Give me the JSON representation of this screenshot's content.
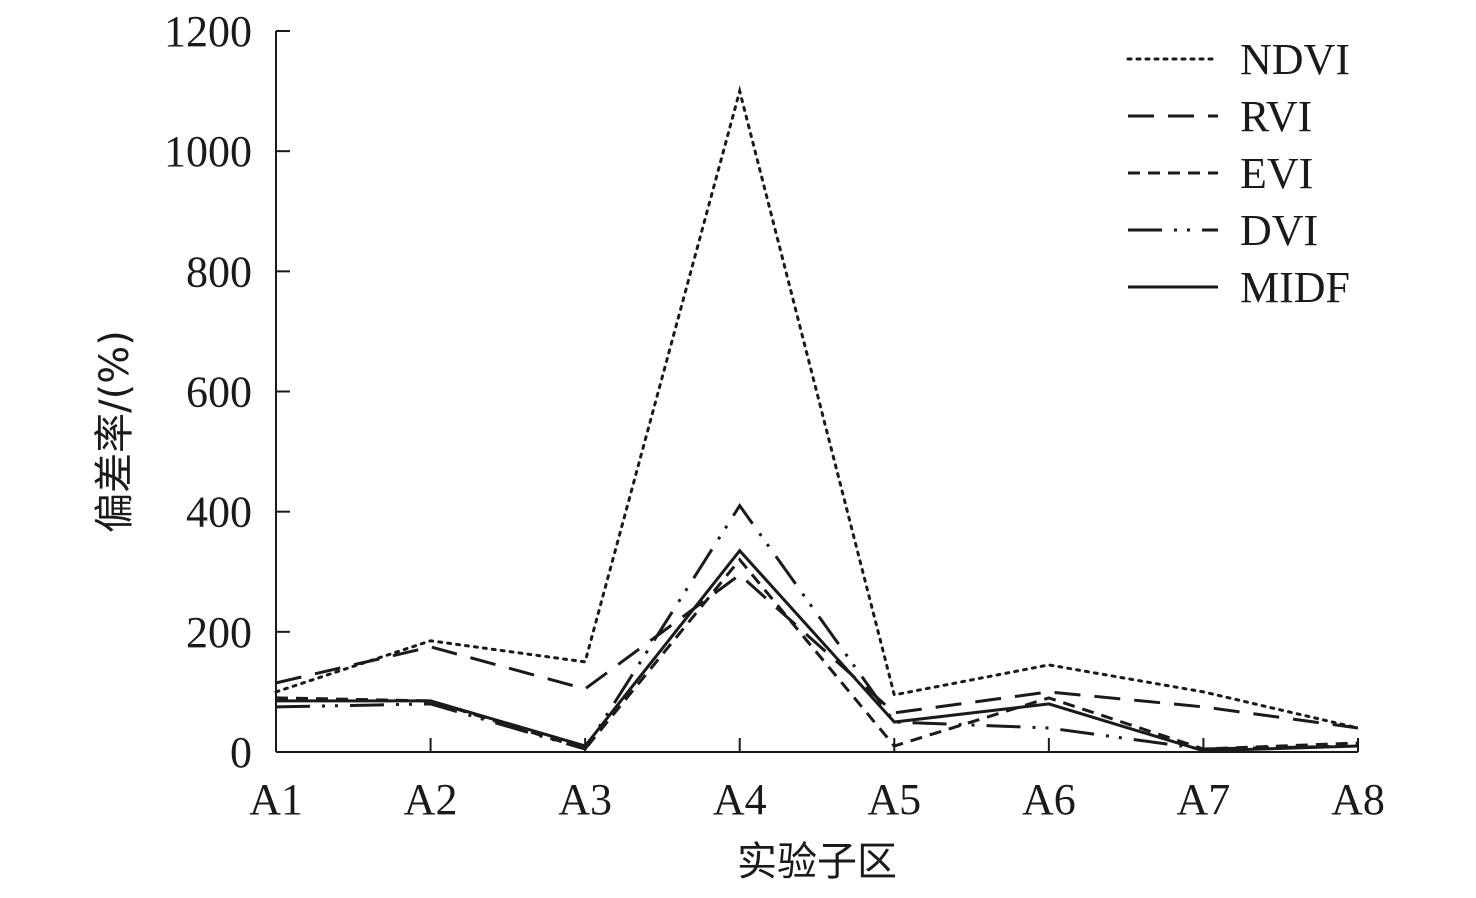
{
  "chart_data": {
    "type": "line",
    "xlabel": "实验子区",
    "ylabel": "偏差率/(%)",
    "categories": [
      "A1",
      "A2",
      "A3",
      "A4",
      "A5",
      "A6",
      "A7",
      "A8"
    ],
    "ylim": [
      0,
      1200
    ],
    "yticks": [
      0,
      200,
      400,
      600,
      800,
      1000,
      1200
    ],
    "grid": false,
    "legend_position": "top-right",
    "series": [
      {
        "name": "NDVI",
        "style": "dotted",
        "values": [
          100,
          185,
          150,
          1100,
          95,
          145,
          100,
          40
        ]
      },
      {
        "name": "RVI",
        "style": "long-dash",
        "values": [
          115,
          175,
          105,
          295,
          65,
          100,
          75,
          40
        ]
      },
      {
        "name": "EVI",
        "style": "short-dash",
        "values": [
          90,
          85,
          5,
          320,
          10,
          90,
          5,
          15
        ]
      },
      {
        "name": "DVI",
        "style": "dash-dot-dot",
        "values": [
          75,
          80,
          5,
          410,
          50,
          40,
          5,
          10
        ]
      },
      {
        "name": "MIDF",
        "style": "solid",
        "values": [
          85,
          85,
          10,
          335,
          50,
          80,
          2,
          10
        ]
      }
    ],
    "line_color": "#1a1a1a"
  }
}
